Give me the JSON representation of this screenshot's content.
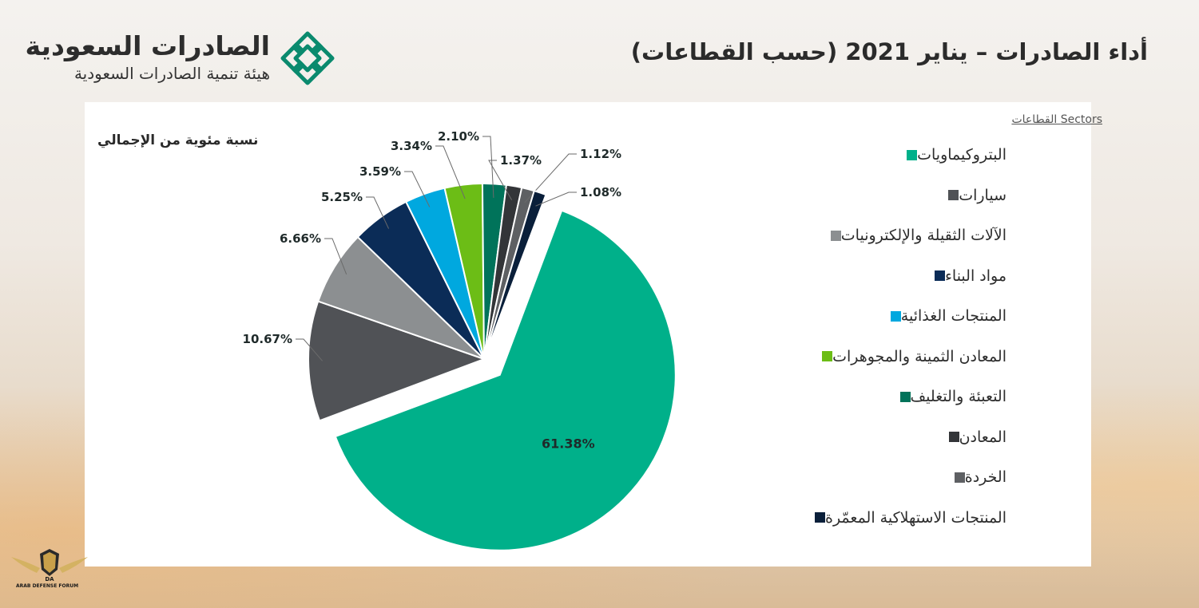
{
  "header": {
    "logo_main": "الصادرات السعودية",
    "logo_sub": "هيئة تنمية الصادرات السعودية",
    "page_title": "أداء الصادرات – يناير 2021 (حسب القطاعات)"
  },
  "legend_header": "Sectors القطاعات",
  "watermark_text": "ARAB DEFENSE FORUM",
  "colors": {
    "teal": "#00b08a",
    "dark_gray": "#505256",
    "light_gray": "#8c8f91",
    "navy": "#0b2c57",
    "sky": "#00a8df",
    "lime": "#6cbd16",
    "dark_green": "#00735a",
    "charcoal": "#333538",
    "mid_gray": "#5e6063",
    "deep_navy": "#0a1f3a"
  },
  "chart_data": {
    "type": "pie",
    "title": "نسبة مئوية من الإجمالي",
    "legend_position": "right",
    "slices": [
      {
        "label": "البتروكيماويات",
        "value": 61.38,
        "value_label": "61.38%",
        "color": "#00b08a",
        "exploded": true
      },
      {
        "label": "سيارات",
        "value": 10.67,
        "value_label": "10.67%",
        "color": "#505256"
      },
      {
        "label": "الآلات الثقيلة والإلكترونيات",
        "value": 6.66,
        "value_label": "6.66%",
        "color": "#8c8f91"
      },
      {
        "label": "مواد البناء",
        "value": 5.25,
        "value_label": "5.25%",
        "color": "#0b2c57"
      },
      {
        "label": "المنتجات الغذائية",
        "value": 3.59,
        "value_label": "3.59%",
        "color": "#00a8df"
      },
      {
        "label": "المعادن الثمينة والمجوهرات",
        "value": 3.34,
        "value_label": "3.34%",
        "color": "#6cbd16"
      },
      {
        "label": "التعبئة والتغليف",
        "value": 2.1,
        "value_label": "2.10%",
        "color": "#00735a"
      },
      {
        "label": "المعادن",
        "value": 1.37,
        "value_label": "1.37%",
        "color": "#333538"
      },
      {
        "label": "الخردة",
        "value": 1.12,
        "value_label": "1.12%",
        "color": "#5e6063"
      },
      {
        "label": "المنتجات الاستهلاكية المعمّرة",
        "value": 1.08,
        "value_label": "1.08%",
        "color": "#0a1f3a"
      }
    ]
  }
}
